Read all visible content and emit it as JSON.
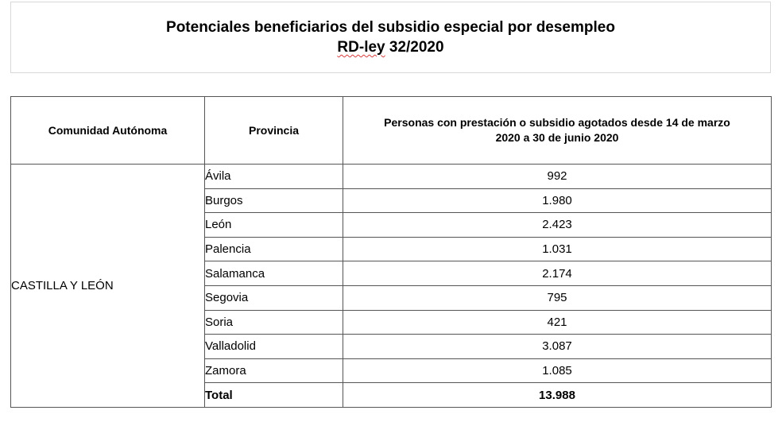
{
  "title": {
    "line1": "Potenciales beneficiarios del subsidio especial por desempleo",
    "line2_marked": "RD-ley",
    "line2_rest": " 32/2020"
  },
  "table": {
    "headers": {
      "community": "Comunidad Autónoma",
      "province": "Provincia",
      "persons_line1": "Personas con prestación o subsidio agotados desde 14 de marzo",
      "persons_line2": "2020 a 30 de junio 2020"
    },
    "community": "CASTILLA Y LEÓN",
    "rows": [
      {
        "province": "Ávila",
        "value": "992"
      },
      {
        "province": "Burgos",
        "value": "1.980"
      },
      {
        "province": "León",
        "value": "2.423"
      },
      {
        "province": "Palencia",
        "value": "1.031"
      },
      {
        "province": "Salamanca",
        "value": "2.174"
      },
      {
        "province": "Segovia",
        "value": "795"
      },
      {
        "province": "Soria",
        "value": "421"
      },
      {
        "province": "Valladolid",
        "value": "3.087"
      },
      {
        "province": "Zamora",
        "value": "1.085"
      }
    ],
    "total": {
      "label": "Total",
      "value": "13.988"
    }
  }
}
